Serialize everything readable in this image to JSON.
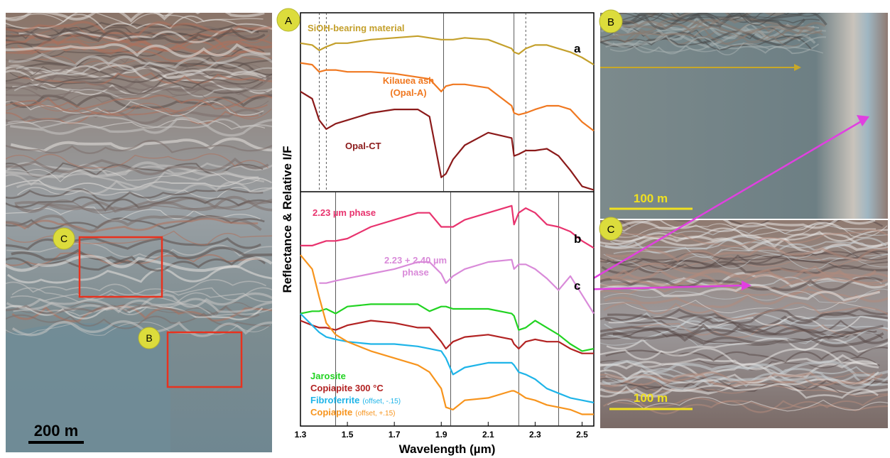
{
  "figure": {
    "panel_a_label": "A",
    "context_image": {
      "scale_bar": "200 m",
      "box_labels": [
        "C",
        "B"
      ]
    },
    "image_b": {
      "label": "B",
      "scale_bar": "100 m"
    },
    "image_c": {
      "label": "C",
      "scale_bar": "100 m"
    }
  },
  "chart_data": [
    {
      "type": "line",
      "ylabel": "Reflectance & Relative I/F",
      "annotations": [
        "a"
      ],
      "x": [
        1.3,
        1.35,
        1.38,
        1.41,
        1.45,
        1.5,
        1.6,
        1.7,
        1.8,
        1.85,
        1.9,
        1.92,
        1.95,
        2.0,
        2.1,
        2.2,
        2.21,
        2.23,
        2.26,
        2.3,
        2.35,
        2.4,
        2.45,
        2.5,
        2.55
      ],
      "xlim": [
        1.3,
        2.55
      ],
      "ylim": [
        0,
        1
      ],
      "reference_lines": [
        1.38,
        1.41,
        1.91,
        2.21,
        2.26
      ],
      "series": [
        {
          "name": "SiOH-bearing material",
          "color": "#c4a02c",
          "values": [
            0.83,
            0.82,
            0.79,
            0.81,
            0.83,
            0.83,
            0.85,
            0.86,
            0.87,
            0.86,
            0.85,
            0.85,
            0.85,
            0.86,
            0.85,
            0.8,
            0.78,
            0.77,
            0.8,
            0.82,
            0.82,
            0.8,
            0.78,
            0.75,
            0.71
          ]
        },
        {
          "name": "Kilauea ash (Opal-A)",
          "color": "#f07820",
          "values": [
            0.72,
            0.71,
            0.67,
            0.68,
            0.68,
            0.67,
            0.67,
            0.66,
            0.64,
            0.63,
            0.56,
            0.59,
            0.6,
            0.6,
            0.58,
            0.48,
            0.44,
            0.43,
            0.44,
            0.46,
            0.48,
            0.48,
            0.46,
            0.39,
            0.34
          ]
        },
        {
          "name": "Opal-CT",
          "color": "#8b1a1a",
          "values": [
            0.56,
            0.52,
            0.4,
            0.35,
            0.38,
            0.4,
            0.44,
            0.46,
            0.46,
            0.42,
            0.08,
            0.1,
            0.18,
            0.26,
            0.33,
            0.3,
            0.2,
            0.21,
            0.23,
            0.23,
            0.24,
            0.2,
            0.12,
            0.03,
            0.01
          ]
        }
      ]
    },
    {
      "type": "line",
      "xlabel": "Wavelength (µm)",
      "annotations": [
        "b",
        "c"
      ],
      "x": [
        1.3,
        1.35,
        1.38,
        1.41,
        1.45,
        1.5,
        1.6,
        1.7,
        1.8,
        1.85,
        1.9,
        1.92,
        1.95,
        2.0,
        2.1,
        2.2,
        2.21,
        2.23,
        2.26,
        2.3,
        2.35,
        2.4,
        2.45,
        2.5,
        2.55
      ],
      "xlim": [
        1.3,
        2.55
      ],
      "ylim": [
        0,
        1
      ],
      "xticks": [
        1.3,
        1.5,
        1.7,
        1.9,
        2.1,
        2.3,
        2.5
      ],
      "reference_lines": [
        1.45,
        1.94,
        2.23,
        2.4
      ],
      "series": [
        {
          "name": "2.23 µm phase",
          "color": "#e8336e",
          "values": [
            0.77,
            0.77,
            0.78,
            0.79,
            0.79,
            0.8,
            0.85,
            0.88,
            0.91,
            0.91,
            0.85,
            0.85,
            0.85,
            0.88,
            0.91,
            0.94,
            0.86,
            0.91,
            0.93,
            0.91,
            0.86,
            0.85,
            0.83,
            0.79,
            0.76
          ]
        },
        {
          "name": "2.23 + 2.40 µm phase",
          "color": "#d98ad9",
          "values": [
            null,
            null,
            0.61,
            0.61,
            0.62,
            0.63,
            0.65,
            0.67,
            0.7,
            0.7,
            0.65,
            0.61,
            0.64,
            0.67,
            0.7,
            0.71,
            0.67,
            0.69,
            0.69,
            0.67,
            0.63,
            0.58,
            0.64,
            0.56,
            0.48
          ]
        },
        {
          "name": "Jarosite",
          "color": "#22d322",
          "values": [
            0.48,
            0.49,
            0.49,
            0.5,
            0.48,
            0.51,
            0.52,
            0.52,
            0.52,
            0.49,
            0.51,
            0.51,
            0.5,
            0.5,
            0.5,
            0.48,
            0.47,
            0.41,
            0.42,
            0.45,
            0.42,
            0.39,
            0.35,
            0.32,
            0.33
          ]
        },
        {
          "name": "Copiapite 300 °C",
          "color": "#b22222",
          "values": [
            0.45,
            0.43,
            0.42,
            0.42,
            0.41,
            0.43,
            0.45,
            0.44,
            0.42,
            0.42,
            0.36,
            0.33,
            0.36,
            0.38,
            0.39,
            0.37,
            0.35,
            0.33,
            0.36,
            0.37,
            0.36,
            0.36,
            0.33,
            0.31,
            0.31
          ]
        },
        {
          "name": "Fibroferrite",
          "note": "(offset, -.15)",
          "color": "#1eb4e8",
          "values": [
            0.48,
            0.43,
            0.4,
            0.38,
            0.37,
            0.36,
            0.35,
            0.35,
            0.34,
            0.33,
            0.32,
            0.29,
            0.22,
            0.25,
            0.27,
            0.27,
            0.26,
            0.23,
            0.22,
            0.2,
            0.16,
            0.14,
            0.12,
            0.11,
            0.1
          ]
        },
        {
          "name": "Copiapite",
          "note": "(offset, +.15)",
          "color": "#f7941d",
          "values": [
            0.73,
            0.67,
            0.55,
            0.44,
            0.39,
            0.36,
            0.32,
            0.29,
            0.26,
            0.23,
            0.16,
            0.08,
            0.07,
            0.11,
            0.12,
            0.15,
            0.15,
            0.14,
            0.12,
            0.11,
            0.09,
            0.08,
            0.07,
            0.05,
            0.05
          ]
        }
      ]
    }
  ]
}
